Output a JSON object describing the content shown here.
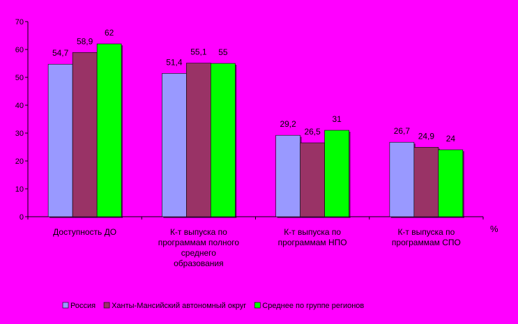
{
  "chart_data": {
    "type": "bar",
    "title": "",
    "xlabel": "",
    "ylabel": "",
    "unit_label": "%",
    "ylim": [
      0,
      70
    ],
    "yticks": [
      0,
      10,
      20,
      30,
      40,
      50,
      60,
      70
    ],
    "grid": false,
    "legend_position": "bottom",
    "categories": [
      [
        "Доступность ДО"
      ],
      [
        "К-т выпуска по",
        "программам полного",
        "среднего",
        "образования"
      ],
      [
        "К-т выпуска по",
        "программам НПО"
      ],
      [
        "К-т выпуска по",
        "программам СПО"
      ]
    ],
    "series": [
      {
        "name": "Россия",
        "color": "#9999ff",
        "values": [
          54.7,
          51.4,
          29.2,
          26.7
        ],
        "labels": [
          "54,7",
          "51,4",
          "29,2",
          "26,7"
        ]
      },
      {
        "name": "Ханты-Мансийский автономный округ",
        "color": "#993366",
        "values": [
          58.9,
          55.1,
          26.5,
          24.9
        ],
        "labels": [
          "58,9",
          "55,1",
          "26,5",
          "24,9"
        ]
      },
      {
        "name": "Среднее по группе регионов",
        "color": "#00ff00",
        "values": [
          62,
          55,
          31,
          24
        ],
        "labels": [
          "62",
          "55",
          "31",
          "24"
        ]
      }
    ]
  }
}
